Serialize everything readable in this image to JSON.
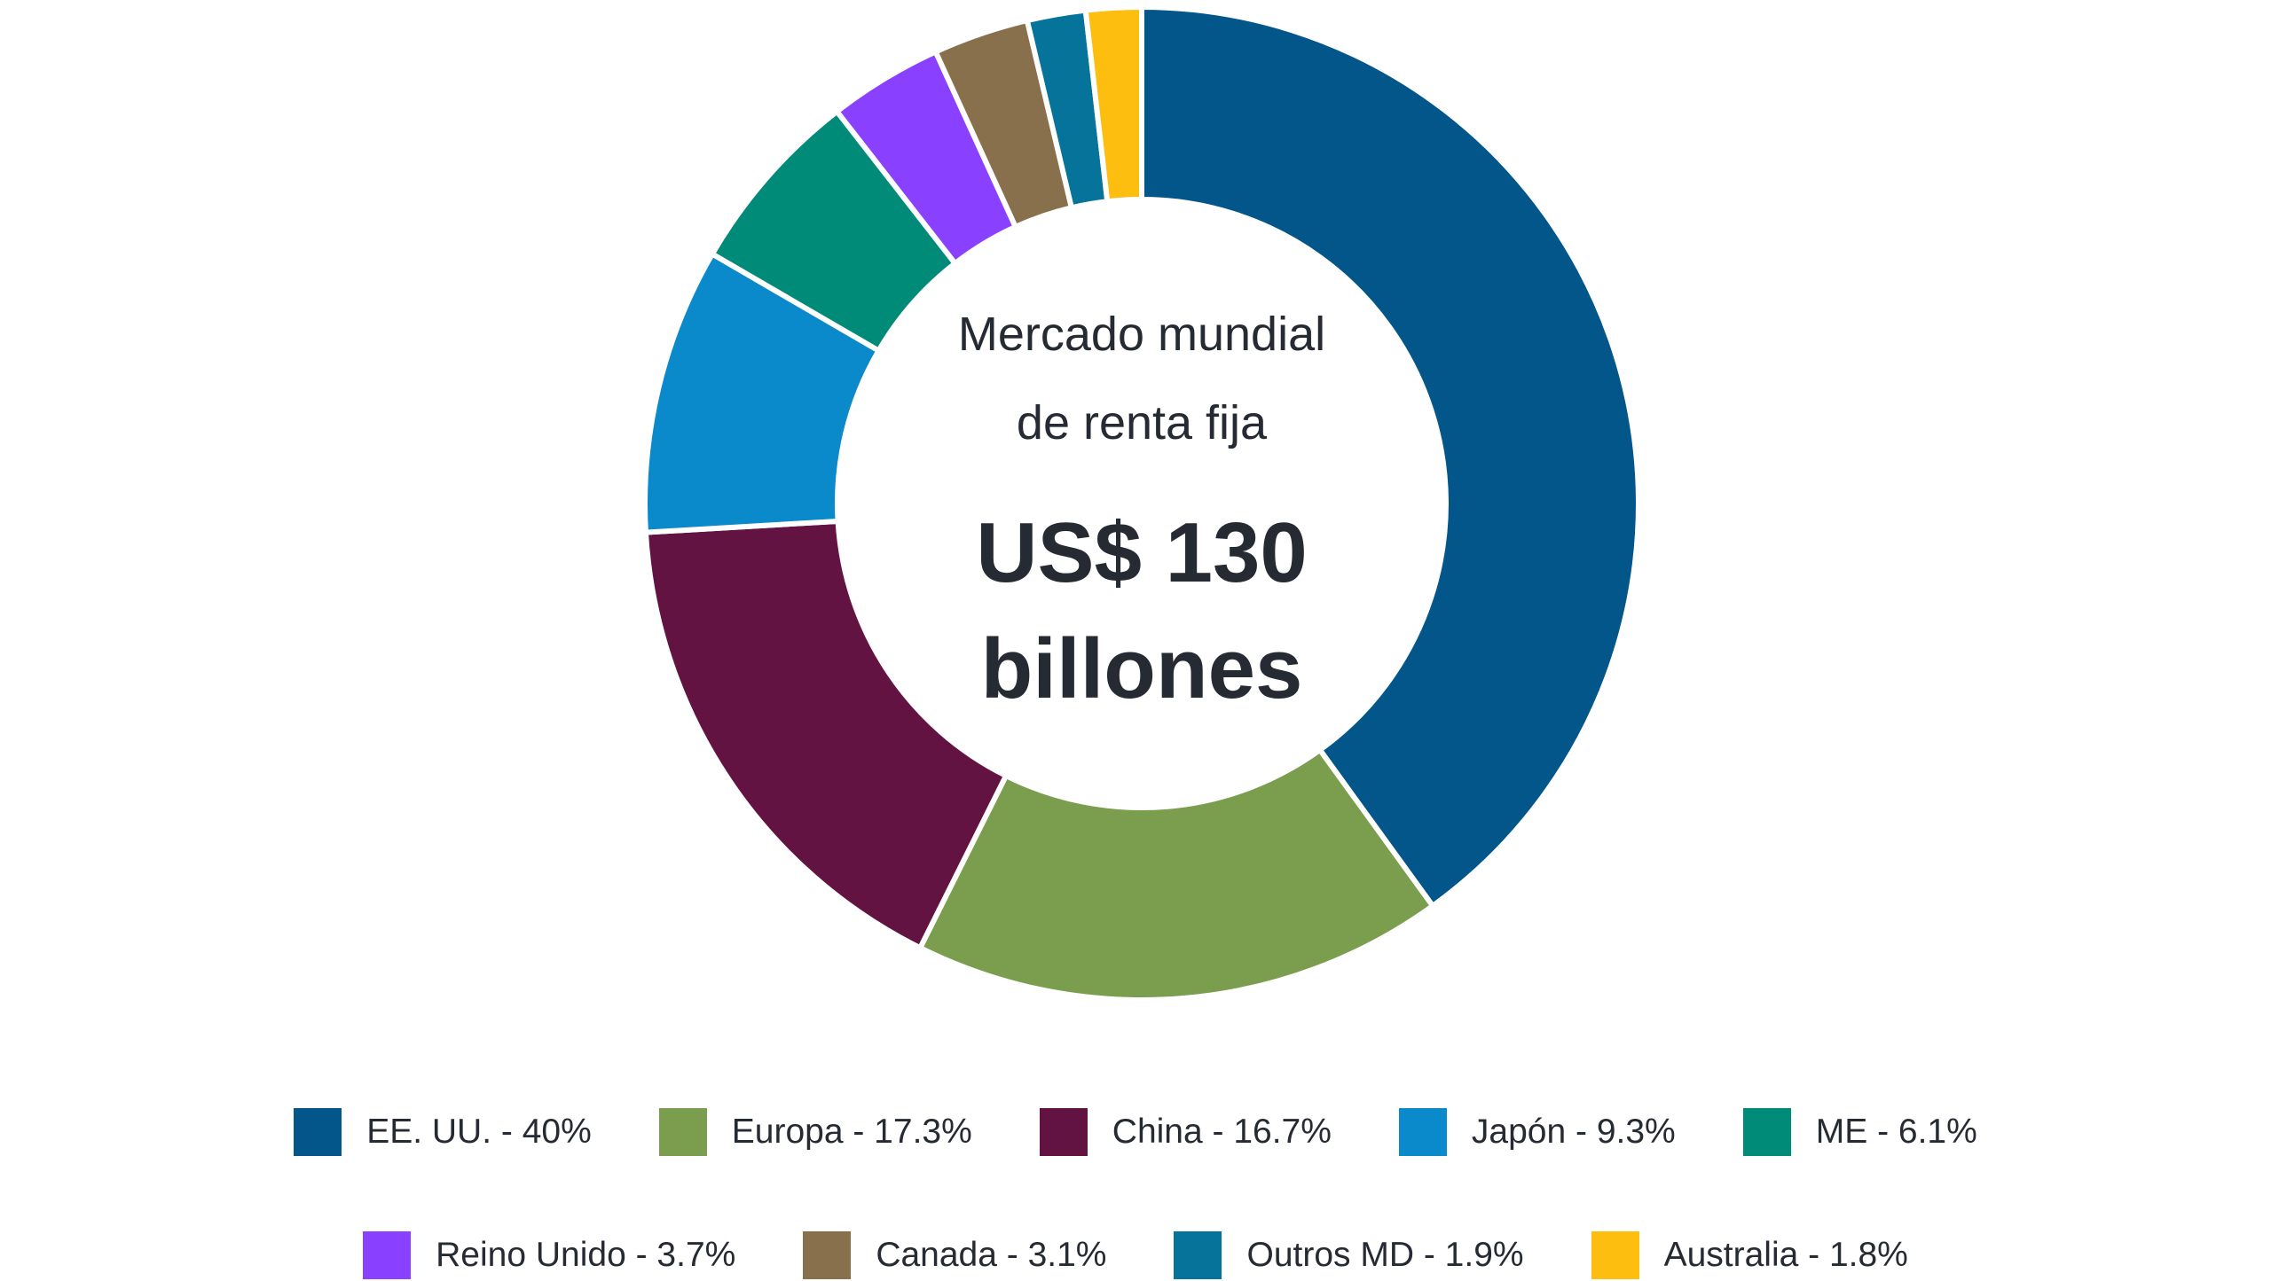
{
  "chart_data": {
    "type": "pie",
    "donut": true,
    "center_text": {
      "line1": "Mercado mundial",
      "line2": "de renta fija",
      "value_line1": "US$ 130",
      "value_line2": "billones"
    },
    "slices": [
      {
        "label": "EE. UU. - 40%",
        "name": "EE. UU.",
        "value": 40,
        "color": "#03568A"
      },
      {
        "label": "Europa - 17.3%",
        "name": "Europa",
        "value": 17.3,
        "color": "#7A9D4E"
      },
      {
        "label": "China - 16.7%",
        "name": "China",
        "value": 16.7,
        "color": "#621342"
      },
      {
        "label": "Japón - 9.3%",
        "name": "Japón",
        "value": 9.3,
        "color": "#0A8ACA"
      },
      {
        "label": "ME - 6.1%",
        "name": "ME",
        "value": 6.1,
        "color": "#008A78"
      },
      {
        "label": "Reino Unido - 3.7%",
        "name": "Reino Unido",
        "value": 3.7,
        "color": "#8A41FF"
      },
      {
        "label": "Canada - 3.1%",
        "name": "Canada",
        "value": 3.1,
        "color": "#88704D"
      },
      {
        "label": "Outros MD - 1.9%",
        "name": "Outros MD",
        "value": 1.9,
        "color": "#06739A"
      },
      {
        "label": "Australia - 1.8%",
        "name": "Australia",
        "value": 1.8,
        "color": "#FEBE10"
      }
    ],
    "legend_placement": "bottom",
    "start_angle": "top",
    "direction": "clockwise"
  }
}
